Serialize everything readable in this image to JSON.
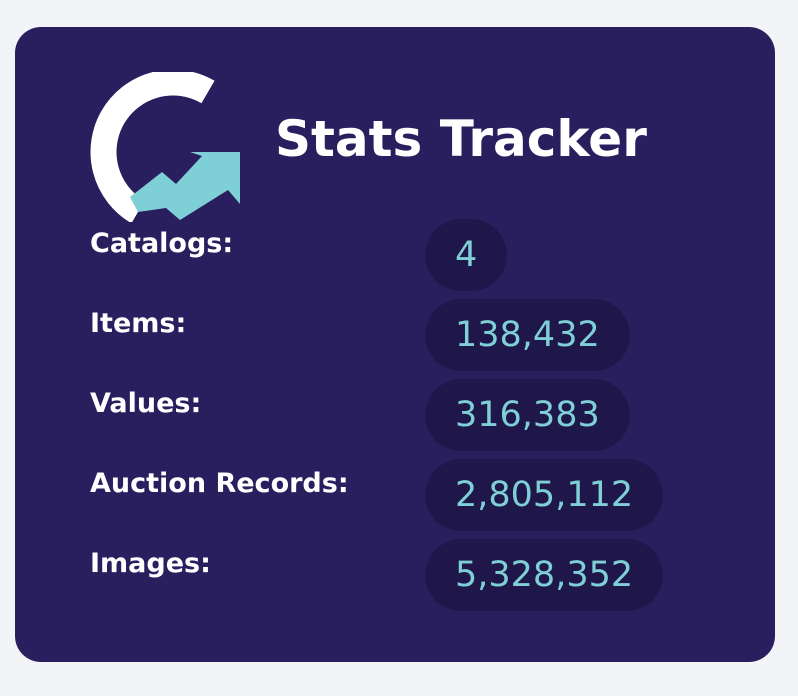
{
  "header": {
    "title": "Stats Tracker"
  },
  "stats": [
    {
      "label": "Catalogs:",
      "value": "4"
    },
    {
      "label": "Items:",
      "value": "138,432"
    },
    {
      "label": "Values:",
      "value": "316,383"
    },
    {
      "label": "Auction Records:",
      "value": "2,805,112"
    },
    {
      "label": "Images:",
      "value": "5,328,352"
    }
  ]
}
